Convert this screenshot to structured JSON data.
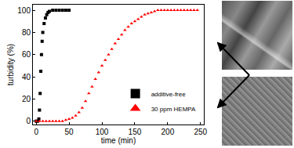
{
  "chart_data": {
    "type": "scatter",
    "x_label": "time (min)",
    "y_label": "turbidity (%)",
    "xlim": [
      -5,
      255
    ],
    "xticks": [
      0,
      50,
      100,
      150,
      200,
      250
    ],
    "ylim": [
      -3,
      105
    ],
    "yticks": [
      0,
      20,
      40,
      60,
      80,
      100
    ],
    "grid": false,
    "legend": "lower right",
    "series": [
      {
        "name": "additive-free",
        "color": "#000000",
        "marker": "square",
        "x": [
          0,
          2,
          4,
          5,
          6,
          7,
          8,
          9,
          10,
          12,
          14,
          16,
          18,
          20,
          25,
          30,
          35,
          40,
          45,
          50
        ],
        "values": [
          0,
          0,
          2,
          10,
          25,
          45,
          60,
          72,
          80,
          88,
          93,
          96,
          98,
          99,
          100,
          100,
          100,
          100,
          100,
          100
        ]
      },
      {
        "name": "30 ppm HEMPA",
        "color": "#ff0000",
        "marker": "triangle-up",
        "x": [
          0,
          5,
          10,
          15,
          20,
          25,
          30,
          35,
          40,
          45,
          50,
          55,
          60,
          65,
          70,
          75,
          80,
          85,
          90,
          95,
          100,
          105,
          110,
          115,
          120,
          125,
          130,
          135,
          140,
          145,
          150,
          155,
          160,
          165,
          170,
          175,
          180,
          185,
          190,
          195,
          200,
          205,
          210,
          215,
          220,
          225,
          230,
          235,
          240,
          245
        ],
        "values": [
          0,
          0,
          0,
          0,
          0,
          0,
          0,
          0,
          0,
          1,
          2,
          3,
          5,
          8,
          12,
          18,
          25,
          31,
          38,
          44,
          50,
          55,
          60,
          65,
          70,
          74,
          78,
          82,
          85,
          88,
          90,
          92,
          94,
          96,
          97,
          98,
          99,
          100,
          100,
          100,
          100,
          100,
          100,
          100,
          100,
          100,
          100,
          100,
          100,
          100
        ]
      }
    ]
  }
}
